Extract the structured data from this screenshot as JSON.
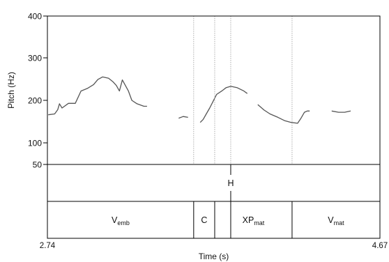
{
  "chart_data": {
    "type": "line",
    "title": "",
    "xlabel": "Time (s)",
    "ylabel": "Pitch (Hz)",
    "xlim": [
      2.74,
      4.67
    ],
    "ylim": [
      50,
      400
    ],
    "x_tick_labels": [
      "2.74",
      "4.67"
    ],
    "y_ticks": [
      50,
      100,
      200,
      300,
      400
    ],
    "y_tick_labels": [
      "50",
      "100",
      "200",
      "300",
      "400"
    ],
    "boundaries": [
      3.589,
      3.711,
      3.804,
      4.16
    ],
    "tone_tier": [
      {
        "time": 3.804,
        "label": "H"
      }
    ],
    "word_tier": [
      {
        "start": 2.74,
        "end": 3.589,
        "base": "V",
        "sub": "emb"
      },
      {
        "start": 3.589,
        "end": 3.711,
        "base": "C",
        "sub": ""
      },
      {
        "start": 3.711,
        "end": 4.16,
        "base": "XP",
        "sub": "mat"
      },
      {
        "start": 4.16,
        "end": 4.67,
        "base": "V",
        "sub": "mat"
      }
    ],
    "series": [
      {
        "points": [
          [
            2.745,
            166
          ],
          [
            2.782,
            168
          ],
          [
            2.8,
            178
          ],
          [
            2.81,
            192
          ],
          [
            2.825,
            182
          ],
          [
            2.862,
            193
          ],
          [
            2.902,
            193
          ],
          [
            2.935,
            222
          ],
          [
            2.972,
            228
          ],
          [
            3.008,
            237
          ],
          [
            3.033,
            249
          ],
          [
            3.06,
            255
          ],
          [
            3.095,
            252
          ],
          [
            3.12,
            244
          ],
          [
            3.14,
            235
          ],
          [
            3.158,
            222
          ],
          [
            3.175,
            248
          ],
          [
            3.19,
            237
          ],
          [
            3.21,
            222
          ],
          [
            3.23,
            200
          ],
          [
            3.26,
            192
          ],
          [
            3.3,
            186
          ],
          [
            3.318,
            186
          ]
        ]
      },
      {
        "points": [
          [
            3.502,
            158
          ],
          [
            3.528,
            162
          ],
          [
            3.556,
            160
          ]
        ]
      },
      {
        "points": [
          [
            3.627,
            148
          ],
          [
            3.644,
            155
          ],
          [
            3.662,
            168
          ],
          [
            3.682,
            182
          ],
          [
            3.702,
            198
          ],
          [
            3.722,
            214
          ],
          [
            3.752,
            222
          ],
          [
            3.778,
            230
          ],
          [
            3.804,
            233
          ],
          [
            3.84,
            230
          ],
          [
            3.88,
            222
          ],
          [
            3.9,
            216
          ]
        ]
      },
      {
        "points": [
          [
            3.961,
            190
          ],
          [
            3.998,
            177
          ],
          [
            4.032,
            168
          ],
          [
            4.078,
            160
          ],
          [
            4.118,
            152
          ],
          [
            4.155,
            148
          ],
          [
            4.192,
            146
          ],
          [
            4.212,
            158
          ],
          [
            4.232,
            172
          ],
          [
            4.248,
            175
          ],
          [
            4.262,
            175
          ]
        ]
      },
      {
        "points": [
          [
            4.39,
            175
          ],
          [
            4.43,
            172
          ],
          [
            4.465,
            172
          ],
          [
            4.5,
            175
          ]
        ]
      }
    ]
  }
}
